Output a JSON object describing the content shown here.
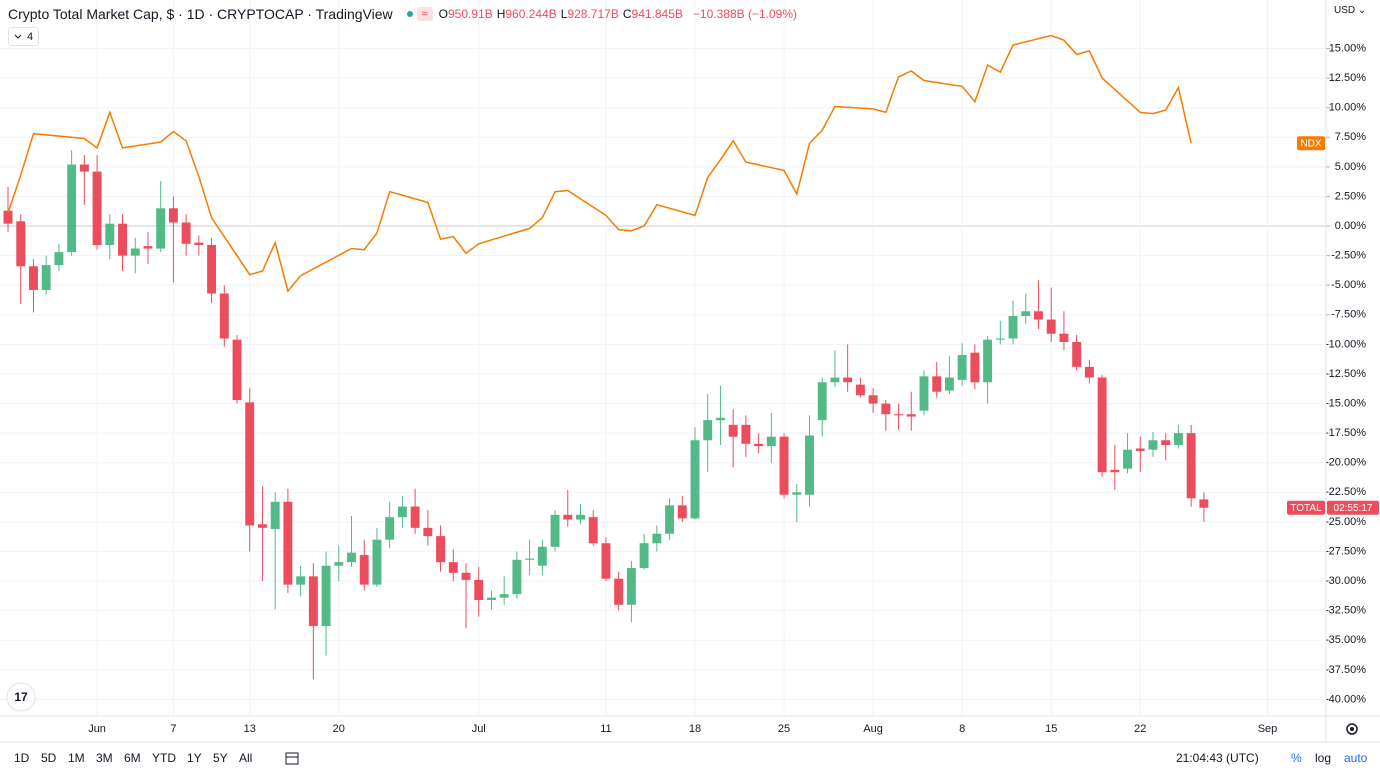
{
  "header": {
    "title": "Crypto Total Market Cap, $ · 1D · CRYPTOCAP · TradingView",
    "ohlc": [
      {
        "key": "O",
        "value": "950.91B"
      },
      {
        "key": "H",
        "value": "960.244B"
      },
      {
        "key": "L",
        "value": "928.717B"
      },
      {
        "key": "C",
        "value": "941.845B"
      }
    ],
    "change": "−10.388B (−1.09%)",
    "indicator_count": "4"
  },
  "currency": "USD",
  "toolbar": {
    "ranges": [
      "1D",
      "5D",
      "1M",
      "3M",
      "6M",
      "YTD",
      "1Y",
      "5Y",
      "All"
    ],
    "clock": "21:04:43 (UTC)",
    "percent": "%",
    "log": "log",
    "auto": "auto"
  },
  "chart_data": {
    "type": "candlestick",
    "grid": true,
    "ylim": [
      -41.4,
      19.1
    ],
    "yticks": [
      {
        "value": 15,
        "label": "15.00%"
      },
      {
        "value": 12.5,
        "label": "12.50%"
      },
      {
        "value": 10,
        "label": "10.00%"
      },
      {
        "value": 7.5,
        "label": "7.50%"
      },
      {
        "value": 5,
        "label": "5.00%"
      },
      {
        "value": 2.5,
        "label": "2.50%"
      },
      {
        "value": 0,
        "label": "0.00%"
      },
      {
        "value": -2.5,
        "label": "-2.50%"
      },
      {
        "value": -5,
        "label": "-5.00%"
      },
      {
        "value": -7.5,
        "label": "-7.50%"
      },
      {
        "value": -10,
        "label": "-10.00%"
      },
      {
        "value": -12.5,
        "label": "-12.50%"
      },
      {
        "value": -15,
        "label": "-15.00%"
      },
      {
        "value": -17.5,
        "label": "-17.50%"
      },
      {
        "value": -20,
        "label": "-20.00%"
      },
      {
        "value": -22.5,
        "label": "-22.50%"
      },
      {
        "value": -25,
        "label": "-25.00%"
      },
      {
        "value": -27.5,
        "label": "-27.50%"
      },
      {
        "value": -30,
        "label": "-30.00%"
      },
      {
        "value": -32.5,
        "label": "-32.50%"
      },
      {
        "value": -35,
        "label": "-35.00%"
      },
      {
        "value": -37.5,
        "label": "-37.50%"
      },
      {
        "value": -40,
        "label": "-40.00%"
      }
    ],
    "xlim": [
      -0.63,
      103.6
    ],
    "xticks": [
      {
        "value": 7,
        "label": "Jun"
      },
      {
        "value": 13,
        "label": "7"
      },
      {
        "value": 19,
        "label": "13"
      },
      {
        "value": 26,
        "label": "20"
      },
      {
        "value": 37,
        "label": "Jul"
      },
      {
        "value": 47,
        "label": "11"
      },
      {
        "value": 54,
        "label": "18"
      },
      {
        "value": 61,
        "label": "25"
      },
      {
        "value": 68,
        "label": "Aug"
      },
      {
        "value": 75,
        "label": "8"
      },
      {
        "value": 82,
        "label": "15"
      },
      {
        "value": 89,
        "label": "22"
      },
      {
        "value": 99,
        "label": "Sep"
      }
    ],
    "series": [
      {
        "name": "TOTAL",
        "type": "candlestick",
        "up_color": "#53b987",
        "down_color": "#eb4d5c",
        "countdown": "02:55:17",
        "open": [
          1.3,
          0.4,
          -3.4,
          -5.4,
          -3.3,
          -2.2,
          5.2,
          4.6,
          -1.6,
          0.2,
          -2.5,
          -1.7,
          -1.9,
          1.5,
          0.3,
          -1.4,
          -1.6,
          -5.7,
          -9.6,
          -14.9,
          -25.2,
          -25.6,
          -23.3,
          -30.3,
          -29.6,
          -33.8,
          -28.7,
          -28.4,
          -27.8,
          -30.3,
          -26.5,
          -24.6,
          -23.7,
          -25.5,
          -26.2,
          -28.4,
          -29.3,
          -29.9,
          -31.6,
          -31.4,
          -31.1,
          -28.2,
          -28.7,
          -27.1,
          -24.4,
          -24.8,
          -24.6,
          -26.8,
          -29.8,
          -32.0,
          -28.9,
          -26.8,
          -26.0,
          -23.6,
          -24.7,
          -18.1,
          -16.4,
          -16.8,
          -16.8,
          -18.4,
          -18.6,
          -17.8,
          -22.7,
          -22.7,
          -16.4,
          -13.2,
          -12.8,
          -13.4,
          -14.3,
          -15.0,
          -15.9,
          -15.9,
          -15.6,
          -12.7,
          -13.9,
          -13.0,
          -10.7,
          -13.2,
          -9.6,
          -9.5,
          -7.6,
          -7.2,
          -7.9,
          -9.1,
          -9.8,
          -11.9,
          -12.8,
          -20.6,
          -20.5,
          -18.8,
          -18.9,
          -18.1,
          -18.5,
          -17.5,
          -23.1
        ],
        "high": [
          3.3,
          1.0,
          -2.8,
          -2.5,
          -1.5,
          6.4,
          6.0,
          6.0,
          1.0,
          1.0,
          -1.0,
          -0.5,
          3.8,
          2.5,
          1.0,
          -0.8,
          -1.0,
          -5.0,
          -9.2,
          -13.7,
          -22.0,
          -22.5,
          -22.2,
          -28.7,
          -28.5,
          -27.5,
          -27.0,
          -24.5,
          -26.5,
          -25.5,
          -23.3,
          -22.8,
          -22.2,
          -24.0,
          -25.3,
          -27.3,
          -28.5,
          -28.8,
          -30.8,
          -29.6,
          -27.5,
          -26.5,
          -26.5,
          -24.0,
          -22.3,
          -23.5,
          -24.0,
          -26.3,
          -29.2,
          -28.3,
          -26.0,
          -25.3,
          -23.0,
          -22.8,
          -17.0,
          -14.2,
          -13.5,
          -15.5,
          -16.0,
          -17.5,
          -15.8,
          -17.5,
          -21.8,
          -16.0,
          -12.8,
          -10.5,
          -10.0,
          -12.8,
          -13.7,
          -14.7,
          -15.0,
          -14.0,
          -12.2,
          -11.5,
          -11.0,
          -9.9,
          -10.0,
          -9.3,
          -8.0,
          -6.3,
          -5.7,
          -4.6,
          -5.2,
          -7.2,
          -9.2,
          -11.3,
          -12.6,
          -18.5,
          -17.5,
          -17.8,
          -17.4,
          -17.5,
          -16.8,
          -16.8,
          -22.5
        ],
        "low": [
          -0.5,
          -6.6,
          -7.3,
          -5.8,
          -3.8,
          -2.5,
          1.8,
          -2.0,
          -2.8,
          -3.8,
          -4.0,
          -3.2,
          -2.2,
          -4.8,
          -2.5,
          -2.5,
          -6.5,
          -10.2,
          -15.0,
          -27.5,
          -30.0,
          -32.4,
          -31.0,
          -31.3,
          -38.3,
          -36.3,
          -30.0,
          -28.8,
          -30.8,
          -30.5,
          -27.2,
          -25.5,
          -26.0,
          -27.0,
          -29.2,
          -30.0,
          -34.0,
          -33.0,
          -32.4,
          -32.0,
          -31.5,
          -29.5,
          -29.5,
          -27.5,
          -25.4,
          -25.2,
          -27.0,
          -30.0,
          -32.5,
          -33.5,
          -29.0,
          -27.5,
          -26.5,
          -25.0,
          -24.8,
          -20.8,
          -18.5,
          -20.4,
          -19.5,
          -19.2,
          -20.0,
          -23.0,
          -25.0,
          -23.7,
          -17.8,
          -13.6,
          -14.0,
          -14.5,
          -15.8,
          -17.3,
          -17.2,
          -17.3,
          -16.0,
          -14.5,
          -14.2,
          -13.5,
          -13.8,
          -15.0,
          -10.0,
          -10.0,
          -8.3,
          -8.7,
          -9.8,
          -10.5,
          -12.2,
          -13.3,
          -21.2,
          -22.3,
          -20.9,
          -20.8,
          -19.5,
          -19.8,
          -18.8,
          -23.7,
          -25.0
        ],
        "close": [
          0.2,
          -3.4,
          -5.4,
          -3.3,
          -2.2,
          5.2,
          4.6,
          -1.6,
          0.2,
          -2.5,
          -1.9,
          -1.9,
          1.5,
          0.3,
          -1.5,
          -1.6,
          -5.7,
          -9.5,
          -14.7,
          -25.3,
          -25.5,
          -23.3,
          -30.3,
          -29.6,
          -33.8,
          -28.7,
          -28.4,
          -27.6,
          -30.3,
          -26.5,
          -24.6,
          -23.7,
          -25.5,
          -26.2,
          -28.4,
          -29.3,
          -29.9,
          -31.6,
          -31.4,
          -31.1,
          -28.2,
          -28.1,
          -27.1,
          -24.4,
          -24.8,
          -24.4,
          -26.8,
          -29.8,
          -32.0,
          -28.9,
          -26.8,
          -26.0,
          -23.6,
          -24.7,
          -18.1,
          -16.4,
          -16.2,
          -17.8,
          -18.4,
          -18.6,
          -17.8,
          -22.7,
          -22.5,
          -17.7,
          -13.2,
          -12.8,
          -13.2,
          -14.3,
          -15.0,
          -15.9,
          -16.0,
          -16.1,
          -12.7,
          -14.0,
          -12.8,
          -10.9,
          -13.2,
          -9.6,
          -9.5,
          -7.6,
          -7.2,
          -7.9,
          -9.1,
          -9.8,
          -11.9,
          -12.8,
          -20.8,
          -20.8,
          -18.9,
          -19.0,
          -18.1,
          -18.5,
          -17.5,
          -23.0,
          -23.8
        ]
      },
      {
        "name": "NDX",
        "type": "line",
        "color": "#f57c00",
        "x": [
          0,
          1,
          2,
          6,
          7,
          8,
          9,
          12,
          13,
          14,
          15,
          16,
          19,
          20,
          21,
          22,
          23,
          27,
          28,
          29,
          30,
          33,
          34,
          35,
          36,
          37,
          41,
          42,
          43,
          44,
          47,
          48,
          49,
          50,
          51,
          54,
          55,
          56,
          57,
          58,
          61,
          62,
          63,
          64,
          65,
          68,
          69,
          70,
          71,
          72,
          75,
          76,
          77,
          78,
          79,
          82,
          83,
          84,
          85,
          86,
          89,
          90,
          91,
          92,
          93
        ],
        "values": [
          1.1,
          4.3,
          7.8,
          7.4,
          6.6,
          9.6,
          6.6,
          7.1,
          8.0,
          7.2,
          4.2,
          0.7,
          -4.1,
          -3.8,
          -1.4,
          -5.5,
          -4.2,
          -1.9,
          -2.0,
          -0.6,
          2.9,
          2.0,
          -1.1,
          -0.9,
          -2.3,
          -1.5,
          -0.2,
          0.7,
          2.9,
          3.0,
          0.9,
          -0.3,
          -0.4,
          0.0,
          1.8,
          0.9,
          4.1,
          5.6,
          7.2,
          5.4,
          4.7,
          2.7,
          7.0,
          8.1,
          10.1,
          9.9,
          9.6,
          12.6,
          13.1,
          12.3,
          11.8,
          10.5,
          13.6,
          13.0,
          15.3,
          16.1,
          15.7,
          14.5,
          14.8,
          12.5,
          9.6,
          9.5,
          9.8,
          11.7,
          7.0
        ]
      }
    ]
  }
}
